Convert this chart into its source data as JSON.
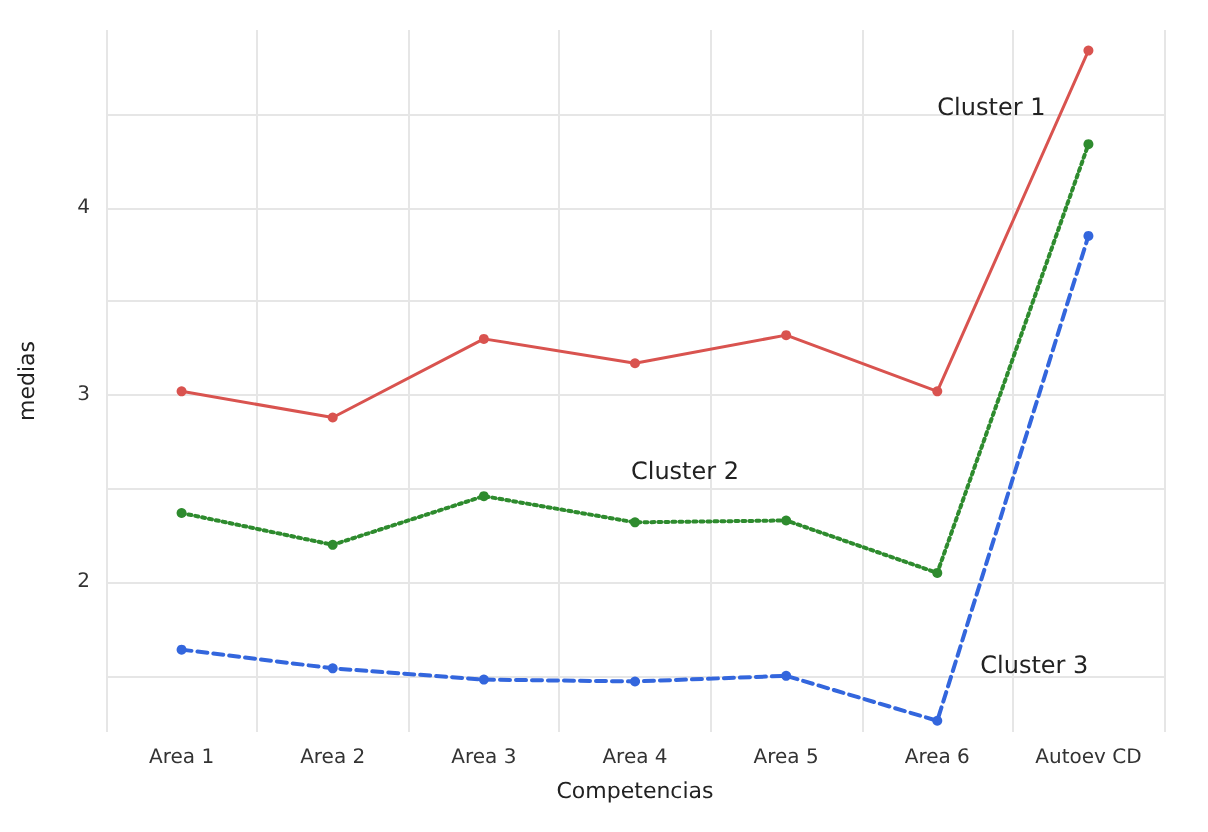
{
  "chart_data": {
    "type": "line",
    "xlabel": "Competencias",
    "ylabel": "medias",
    "categories": [
      "Area 1",
      "Area 2",
      "Area 3",
      "Area 4",
      "Area 5",
      "Area 6",
      "Autoev CD"
    ],
    "series": [
      {
        "name": "Cluster 1",
        "color": "#d9534f",
        "line_style": "solid",
        "values": [
          3.02,
          2.88,
          3.3,
          3.17,
          3.32,
          3.02,
          4.84
        ]
      },
      {
        "name": "Cluster 2",
        "color": "#2e8b2e",
        "line_style": "dotted",
        "values": [
          2.37,
          2.2,
          2.46,
          2.32,
          2.33,
          2.05,
          4.34
        ]
      },
      {
        "name": "Cluster 3",
        "color": "#3366dd",
        "line_style": "dashed",
        "values": [
          1.64,
          1.54,
          1.48,
          1.47,
          1.5,
          1.26,
          3.85
        ]
      }
    ],
    "ylim": [
      1.2,
      4.95
    ],
    "yticks": [
      {
        "value": 1.5,
        "label": null
      },
      2,
      {
        "value": 2.5,
        "label": null
      },
      3,
      {
        "value": 3.5,
        "label": null
      },
      4,
      {
        "value": 4.5,
        "label": null
      }
    ],
    "grid": true,
    "legend": false,
    "marker": "circle"
  }
}
